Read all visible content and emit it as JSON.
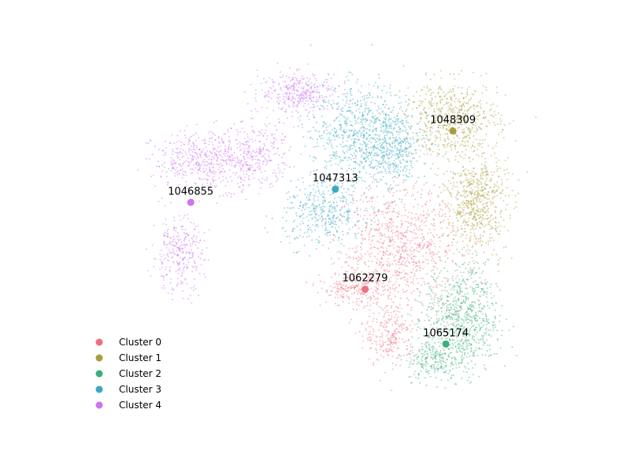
{
  "chart_data": {
    "type": "scatter",
    "title": "",
    "xlabel": "",
    "ylabel": "",
    "axes_visible": false,
    "grid": false,
    "legend_position": "bottom-left",
    "x_range": [
      0,
      100
    ],
    "y_range": [
      0,
      100
    ],
    "series": [
      {
        "name": "Cluster 0",
        "color": "#ee6f80",
        "centroid": {
          "label": "1062279",
          "x": 60.6,
          "y": 35.9
        },
        "regions": [
          {
            "cx": 68,
            "cy": 47,
            "rx": 12,
            "ry": 15,
            "count": 900
          },
          {
            "cx": 66,
            "cy": 24,
            "rx": 5,
            "ry": 8,
            "count": 250
          },
          {
            "cx": 58,
            "cy": 36,
            "rx": 6,
            "ry": 4,
            "count": 200
          }
        ]
      },
      {
        "name": "Cluster 1",
        "color": "#a99d3c",
        "centroid": {
          "label": "1048309",
          "x": 79.2,
          "y": 77.8
        },
        "regions": [
          {
            "cx": 79,
            "cy": 81,
            "rx": 9,
            "ry": 9,
            "count": 600
          },
          {
            "cx": 84,
            "cy": 59,
            "rx": 6,
            "ry": 12,
            "count": 650
          }
        ]
      },
      {
        "name": "Cluster 2",
        "color": "#3aaf7d",
        "centroid": {
          "label": "1065174",
          "x": 77.7,
          "y": 21.4
        },
        "regions": [
          {
            "cx": 81,
            "cy": 28,
            "rx": 7,
            "ry": 13,
            "count": 800
          },
          {
            "cx": 75,
            "cy": 17,
            "rx": 5,
            "ry": 5,
            "count": 200
          }
        ]
      },
      {
        "name": "Cluster 3",
        "color": "#3aa8c1",
        "centroid": {
          "label": "1047313",
          "x": 54.3,
          "y": 62.4
        },
        "regions": [
          {
            "cx": 60,
            "cy": 77,
            "rx": 10,
            "ry": 12,
            "count": 850
          },
          {
            "cx": 52,
            "cy": 56,
            "rx": 8,
            "ry": 8,
            "count": 400
          },
          {
            "cx": 67,
            "cy": 72,
            "rx": 5,
            "ry": 10,
            "count": 250
          }
        ]
      },
      {
        "name": "Cluster 4",
        "color": "#cd74ef",
        "centroid": {
          "label": "1046855",
          "x": 23.7,
          "y": 58.9
        },
        "regions": [
          {
            "cx": 28,
            "cy": 70,
            "rx": 11,
            "ry": 7,
            "count": 550
          },
          {
            "cx": 21,
            "cy": 45,
            "rx": 5,
            "ry": 9,
            "count": 300
          },
          {
            "cx": 47,
            "cy": 88,
            "rx": 8,
            "ry": 5,
            "count": 350
          },
          {
            "cx": 38,
            "cy": 72,
            "rx": 6,
            "ry": 8,
            "count": 200
          }
        ]
      }
    ]
  }
}
